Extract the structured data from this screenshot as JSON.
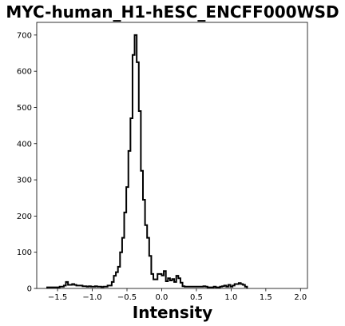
{
  "chart_data": {
    "type": "histogram",
    "title": "MYC-human_H1-hESC_ENCFF000WSD",
    "xlabel": "Intensity",
    "ylabel": "",
    "xlim": [
      -1.8,
      2.1
    ],
    "ylim": [
      0,
      735
    ],
    "xticks": [
      -1.5,
      -1.0,
      -0.5,
      0.0,
      0.5,
      1.0,
      1.5,
      2.0
    ],
    "xtick_labels": [
      "−1.5",
      "−1.0",
      "−0.5",
      "0.0",
      "0.5",
      "1.0",
      "1.5",
      "2.0"
    ],
    "yticks": [
      0,
      100,
      200,
      300,
      400,
      500,
      600,
      700
    ],
    "ytick_labels": [
      "0",
      "100",
      "200",
      "300",
      "400",
      "500",
      "600",
      "700"
    ],
    "bin_width": 0.03,
    "bin_start": -1.65,
    "counts": [
      3,
      3,
      3,
      3,
      3,
      3,
      5,
      5,
      8,
      18,
      10,
      10,
      12,
      10,
      8,
      8,
      8,
      6,
      6,
      5,
      6,
      5,
      5,
      6,
      5,
      5,
      4,
      5,
      5,
      8,
      8,
      18,
      35,
      45,
      60,
      100,
      140,
      210,
      280,
      380,
      470,
      645,
      700,
      625,
      490,
      325,
      245,
      175,
      140,
      90,
      40,
      25,
      25,
      40,
      40,
      36,
      48,
      20,
      28,
      22,
      26,
      18,
      35,
      28,
      16,
      6,
      5,
      5,
      5,
      5,
      5,
      5,
      5,
      5,
      5,
      6,
      5,
      3,
      3,
      3,
      5,
      3,
      3,
      5,
      6,
      8,
      5,
      10,
      5,
      8,
      12,
      12,
      15,
      12,
      10,
      5
    ],
    "grid": false,
    "line_color": "#000000",
    "fill": "none"
  }
}
